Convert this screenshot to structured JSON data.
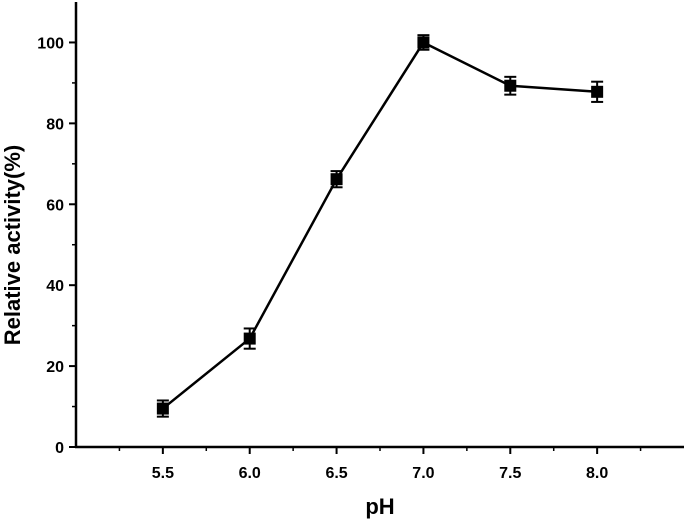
{
  "chart_data": {
    "type": "line",
    "title": "",
    "xlabel": "pH",
    "ylabel": "Relative activity(%)",
    "x": [
      5.5,
      6.0,
      6.5,
      7.0,
      7.5,
      8.0
    ],
    "x_tick_labels": [
      "5.5",
      "6.0",
      "6.5",
      "7.0",
      "7.5",
      "8.0"
    ],
    "xlim": [
      5.0,
      8.5
    ],
    "y_ticks": [
      0,
      20,
      40,
      60,
      80,
      100
    ],
    "y_tick_labels": [
      "0",
      "20",
      "40",
      "60",
      "80",
      "100"
    ],
    "ylim": [
      0,
      110
    ],
    "grid": false,
    "legend": "none",
    "series": [
      {
        "values": [
          9.5,
          26.8,
          66.2,
          100.0,
          89.3,
          87.8
        ],
        "errors": [
          2.0,
          2.5,
          2.0,
          1.8,
          2.2,
          2.5
        ],
        "color": "#000000",
        "marker": "square"
      }
    ]
  }
}
